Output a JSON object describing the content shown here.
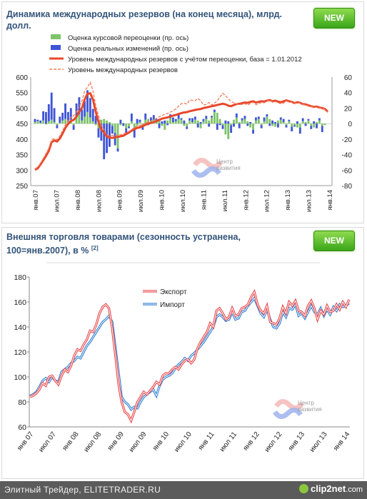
{
  "panel1": {
    "title": "Динамика международных резервов (на конец месяца), млрд. долл.",
    "new_label": "NEW"
  },
  "panel2": {
    "title": "Внешняя торговля товарами (сезонность устранена, 100=янв.2007),",
    "title2": "в %",
    "title_sup": "[2]",
    "new_label": "NEW"
  },
  "watermark": {
    "line1": "Центр",
    "line2": "развития"
  },
  "footer": {
    "text": "Элитный Трейдер, ELITETRADER.RU",
    "logo_main": "clip2net",
    "logo_suffix": ".com"
  },
  "colors": {
    "green": "#7dc36a",
    "blue": "#4055d6",
    "red": "#e8472a",
    "red_dash": "#f08060",
    "export": "#e8474a",
    "import": "#2f7fd1"
  },
  "chart_data": [
    {
      "type": "bar",
      "legend": [
        "Оценка курсовой переоценки  (пр. ось)",
        "Оценка реальных изменений  (пр. ось)",
        "Уровень международных резервов с учётом переоценки, база = 1.01.2012",
        "Уровень международных резервов"
      ],
      "x_tick_labels": [
        "янв.07",
        "июл.07",
        "янв.08",
        "июл.08",
        "янв.09",
        "июл.09",
        "янв.10",
        "июл.10",
        "янв.11",
        "июл.11",
        "янв.12",
        "июл.12",
        "янв.13",
        "июл.13",
        "янв.14"
      ],
      "left_axis": {
        "ticks": [
          "250",
          "300",
          "350",
          "400",
          "450",
          "500",
          "550",
          "600"
        ],
        "ylim": [
          250,
          600
        ]
      },
      "right_axis": {
        "ticks": [
          "-80",
          "-60",
          "-40",
          "-20",
          "0",
          "20",
          "40",
          "60"
        ],
        "ylim": [
          -80,
          60
        ]
      },
      "series": [
        {
          "name": "Оценка курсовой переоценки  (пр. ось)",
          "kind": "bar-right",
          "values": [
            2,
            3,
            1,
            4,
            -1,
            3,
            5,
            2,
            -2,
            1,
            4,
            6,
            3,
            5,
            -2,
            8,
            12,
            4,
            9,
            15,
            8,
            3,
            -2,
            -6,
            5,
            6,
            4,
            2,
            -3,
            -12,
            -32,
            -2,
            1,
            -6,
            -4,
            3,
            -6,
            -3,
            2,
            -4,
            5,
            6,
            3,
            5,
            2,
            4,
            -3,
            -8,
            4,
            7,
            2,
            3,
            6,
            5,
            -3,
            -4,
            4,
            2,
            5,
            4,
            -6,
            3,
            6,
            4,
            8,
            15,
            14,
            6,
            -2,
            -14,
            -20,
            -2,
            5,
            8,
            2,
            4,
            6,
            3,
            -5,
            -8,
            4,
            6,
            -2,
            3,
            9,
            6,
            -3,
            -4,
            4,
            5,
            2,
            -2,
            3,
            -4,
            -2,
            -5,
            -5,
            3,
            2,
            4,
            -3,
            -5,
            2,
            4,
            -3,
            -2
          ]
        },
        {
          "name": "Оценка реальных изменений  (пр. ось)",
          "kind": "bar-right",
          "values": [
            4,
            2,
            3,
            12,
            15,
            22,
            35,
            18,
            -4,
            8,
            10,
            20,
            12,
            15,
            -6,
            18,
            22,
            14,
            20,
            28,
            25,
            16,
            10,
            -12,
            -22,
            -46,
            -38,
            -30,
            -10,
            -16,
            -4,
            5,
            -3,
            -8,
            -2,
            10,
            -12,
            6,
            3,
            -4,
            8,
            -2,
            5,
            6,
            4,
            -6,
            3,
            4,
            -2,
            5,
            6,
            3,
            7,
            2,
            4,
            -3,
            3,
            5,
            4,
            -5,
            2,
            3,
            4,
            -4,
            2,
            3,
            -8,
            -2,
            -5,
            4,
            3,
            -10,
            -4,
            5,
            -6,
            3,
            4,
            -3,
            2,
            -5,
            4,
            3,
            -4,
            5,
            3,
            -3,
            4,
            2,
            -5,
            3,
            4,
            -3,
            2,
            -6,
            -2,
            3,
            -8,
            4,
            -3,
            2,
            -4,
            3,
            -6,
            3,
            -8
          ]
        },
        {
          "name": "Уровень международных резервов с учётом переоценки, база = 1.01.2012",
          "kind": "line-left",
          "values": [
            301,
            306,
            318,
            332,
            346,
            362,
            390,
            396,
            392,
            402,
            418,
            436,
            449,
            458,
            462,
            472,
            488,
            500,
            528,
            546,
            548,
            528,
            488,
            455,
            430,
            422,
            408,
            405,
            404,
            406,
            407,
            409,
            411,
            416,
            421,
            427,
            432,
            436,
            438,
            442,
            446,
            450,
            452,
            455,
            458,
            462,
            466,
            468,
            470,
            473,
            476,
            478,
            481,
            484,
            486,
            487,
            490,
            492,
            494,
            496,
            497,
            500,
            502,
            504,
            506,
            508,
            510,
            512,
            514,
            512,
            508,
            506,
            510,
            513,
            514,
            516,
            518,
            517,
            520,
            522,
            518,
            520,
            522,
            521,
            524,
            526,
            522,
            524,
            521,
            519,
            522,
            525,
            522,
            520,
            516,
            519,
            517,
            513,
            512,
            509,
            506,
            504,
            505,
            502,
            500,
            497,
            489
          ]
        },
        {
          "name": "Уровень международных резервов",
          "kind": "line-left-dashed",
          "values": [
            304,
            310,
            322,
            338,
            354,
            370,
            398,
            402,
            398,
            410,
            427,
            446,
            460,
            470,
            476,
            488,
            505,
            523,
            555,
            568,
            583,
            556,
            508,
            476,
            444,
            430,
            414,
            410,
            412,
            412,
            413,
            414,
            417,
            421,
            425,
            431,
            437,
            442,
            444,
            448,
            452,
            456,
            459,
            463,
            467,
            472,
            476,
            480,
            483,
            487,
            492,
            497,
            506,
            514,
            516,
            513,
            526,
            525,
            524,
            531,
            524,
            510,
            512,
            518,
            510,
            516,
            524,
            536,
            548,
            540,
            530,
            521,
            517,
            514,
            511,
            512,
            514,
            510,
            515,
            519,
            511,
            514,
            518,
            517,
            522,
            527,
            519,
            521,
            517,
            514,
            516,
            523,
            520,
            518,
            515,
            517,
            516,
            512,
            510,
            506,
            505,
            503,
            503,
            501,
            499,
            495,
            486
          ]
        }
      ]
    },
    {
      "type": "line",
      "legend": [
        "Экспорт",
        "Импорт"
      ],
      "x_tick_labels": [
        "янв 07",
        "июл 07",
        "янв 08",
        "июл 08",
        "янв 09",
        "июл 09",
        "янв 10",
        "июл 10",
        "янв 11",
        "июл 11",
        "янв 12",
        "июл 12",
        "янв 13",
        "июл 13",
        "янв 14"
      ],
      "y_axis": {
        "ticks": [
          "60",
          "80",
          "100",
          "120",
          "140",
          "160",
          "180"
        ],
        "ylim": [
          60,
          180
        ]
      },
      "series": [
        {
          "name": "Экспорт",
          "values": [
            84,
            85,
            87,
            90,
            95,
            93,
            100,
            101,
            97,
            94,
            101,
            106,
            104,
            109,
            117,
            122,
            121,
            126,
            130,
            137,
            136,
            142,
            151,
            156,
            158,
            155,
            139,
            118,
            95,
            80,
            72,
            70,
            65,
            72,
            80,
            84,
            88,
            86,
            89,
            92,
            96,
            94,
            101,
            103,
            103,
            106,
            108,
            106,
            110,
            113,
            114,
            111,
            114,
            123,
            128,
            132,
            136,
            143,
            140,
            153,
            155,
            151,
            146,
            148,
            155,
            149,
            150,
            155,
            156,
            158,
            164,
            168,
            158,
            153,
            151,
            157,
            144,
            143,
            142,
            147,
            156,
            151,
            160,
            157,
            161,
            153,
            152,
            149,
            157,
            161,
            155,
            146,
            153,
            150,
            157,
            152,
            153,
            158,
            154,
            160,
            156,
            162
          ]
        },
        {
          "name": "Импорт",
          "values": [
            85,
            86,
            88,
            92,
            97,
            99,
            96,
            100,
            97,
            96,
            104,
            106,
            108,
            111,
            113,
            116,
            115,
            120,
            125,
            128,
            132,
            136,
            140,
            144,
            146,
            149,
            144,
            124,
            104,
            84,
            80,
            78,
            74,
            76,
            75,
            80,
            84,
            86,
            88,
            90,
            85,
            93,
            98,
            100,
            101,
            103,
            107,
            110,
            112,
            115,
            113,
            117,
            119,
            122,
            125,
            128,
            132,
            136,
            140,
            148,
            150,
            148,
            145,
            146,
            152,
            146,
            147,
            152,
            153,
            157,
            160,
            163,
            157,
            151,
            148,
            154,
            146,
            140,
            139,
            143,
            152,
            148,
            155,
            154,
            158,
            149,
            151,
            147,
            152,
            157,
            152,
            150,
            155,
            149,
            154,
            150,
            156,
            153,
            158,
            156,
            157,
            159
          ]
        }
      ]
    }
  ]
}
